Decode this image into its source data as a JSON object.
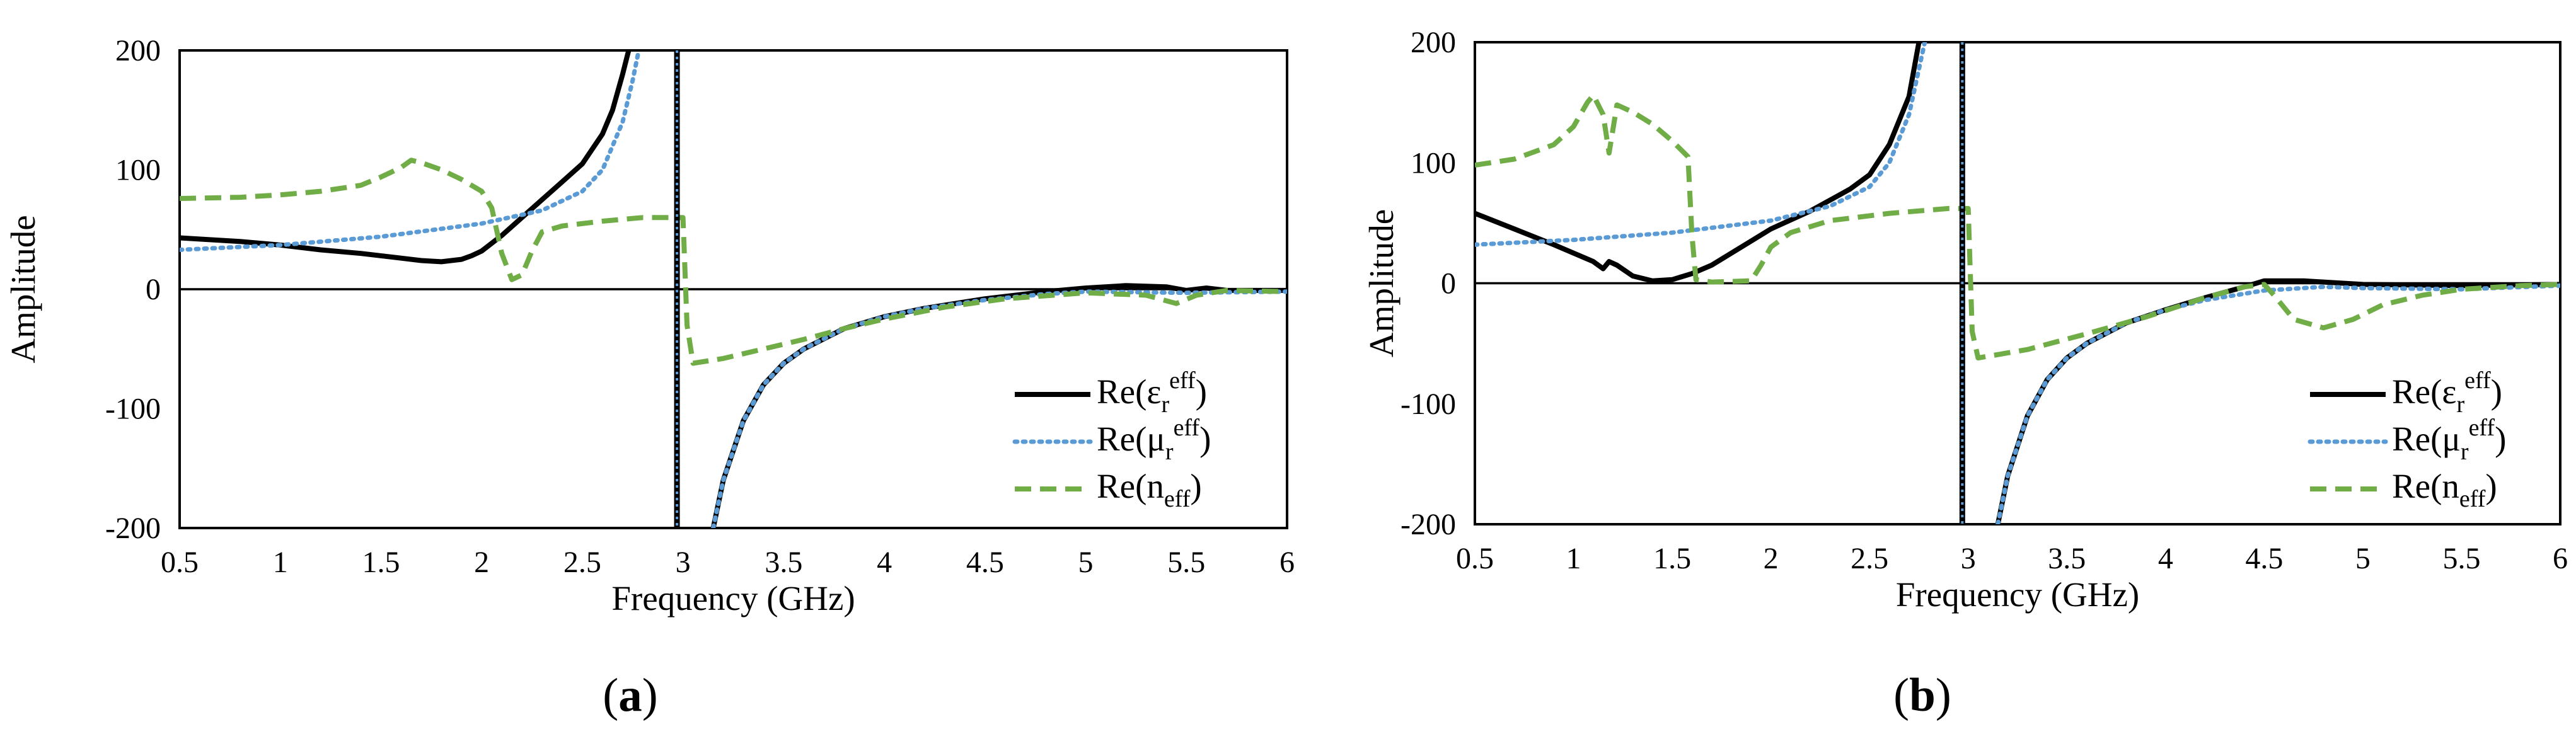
{
  "figure": {
    "panel_labels": [
      "(a)",
      "(b)"
    ]
  },
  "chart_data": [
    {
      "type": "line",
      "panel": "a",
      "panel_letter": "a",
      "xlabel": "Frequency (GHz)",
      "ylabel": "Amplitude",
      "xlim": [
        0.5,
        6
      ],
      "ylim": [
        -200,
        200
      ],
      "xticks": [
        0.5,
        1,
        1.5,
        2,
        2.5,
        3,
        3.5,
        4,
        4.5,
        5,
        5.5,
        6
      ],
      "xtick_labels": [
        "0.5",
        "1",
        "1.5",
        "2",
        "2.5",
        "3",
        "3.5",
        "4",
        "4.5",
        "5",
        "5.5",
        "6"
      ],
      "yticks": [
        -200,
        -100,
        0,
        100,
        200
      ],
      "ytick_labels": [
        "-200",
        "-100",
        "0",
        "100",
        "200"
      ],
      "legend_position": "lower-right",
      "series": [
        {
          "name": "Re(εreff)",
          "legend": {
            "base": "Re(ε",
            "sub": "r",
            "sup": "eff",
            "close": ")"
          },
          "color": "#000000",
          "style": "solid",
          "segments": [
            [
              [
                0.5,
                43
              ],
              [
                0.8,
                40
              ],
              [
                1.0,
                37
              ],
              [
                1.2,
                33
              ],
              [
                1.4,
                30
              ],
              [
                1.6,
                26
              ],
              [
                1.7,
                24
              ],
              [
                1.8,
                23
              ],
              [
                1.9,
                25
              ],
              [
                1.95,
                28
              ],
              [
                2.0,
                32
              ],
              [
                2.1,
                45
              ],
              [
                2.2,
                60
              ],
              [
                2.3,
                75
              ],
              [
                2.4,
                90
              ],
              [
                2.5,
                105
              ],
              [
                2.6,
                130
              ],
              [
                2.65,
                150
              ],
              [
                2.7,
                180
              ],
              [
                2.73,
                200
              ]
            ],
            [
              [
                3.15,
                -200
              ],
              [
                3.2,
                -160
              ],
              [
                3.3,
                -110
              ],
              [
                3.4,
                -80
              ],
              [
                3.5,
                -62
              ],
              [
                3.6,
                -50
              ],
              [
                3.8,
                -33
              ],
              [
                4.0,
                -23
              ],
              [
                4.2,
                -16
              ],
              [
                4.5,
                -8
              ],
              [
                4.8,
                -2
              ],
              [
                5.0,
                1
              ],
              [
                5.2,
                3
              ],
              [
                5.4,
                2
              ],
              [
                5.5,
                -1
              ],
              [
                5.6,
                1
              ],
              [
                5.7,
                -1
              ],
              [
                6.0,
                -1
              ]
            ]
          ]
        },
        {
          "name": "Re(μreff)",
          "legend": {
            "base": "Re(μ",
            "sub": "r",
            "sup": "eff",
            "close": ")"
          },
          "color": "#5b9bd5",
          "style": "dotted",
          "segments": [
            [
              [
                0.5,
                33
              ],
              [
                1.0,
                37
              ],
              [
                1.5,
                44
              ],
              [
                2.0,
                55
              ],
              [
                2.3,
                66
              ],
              [
                2.5,
                82
              ],
              [
                2.6,
                100
              ],
              [
                2.7,
                140
              ],
              [
                2.75,
                175
              ],
              [
                2.78,
                200
              ]
            ],
            [
              [
                3.15,
                -200
              ],
              [
                3.2,
                -160
              ],
              [
                3.3,
                -110
              ],
              [
                3.4,
                -80
              ],
              [
                3.5,
                -62
              ],
              [
                3.6,
                -50
              ],
              [
                3.8,
                -33
              ],
              [
                4.0,
                -23
              ],
              [
                4.2,
                -16
              ],
              [
                4.5,
                -9
              ],
              [
                4.8,
                -4
              ],
              [
                5.0,
                -2
              ],
              [
                5.5,
                -3
              ],
              [
                6.0,
                -2
              ]
            ]
          ]
        },
        {
          "name": "Re(neff)",
          "legend": {
            "base": "Re(n",
            "sub": "eff",
            "sup": "",
            "close": ")"
          },
          "color": "#70ad47",
          "style": "dashed",
          "segments": [
            [
              [
                0.5,
                76
              ],
              [
                0.8,
                77
              ],
              [
                1.0,
                79
              ],
              [
                1.2,
                82
              ],
              [
                1.4,
                87
              ],
              [
                1.5,
                94
              ],
              [
                1.6,
                102
              ],
              [
                1.65,
                108
              ],
              [
                1.7,
                106
              ],
              [
                1.8,
                100
              ],
              [
                1.9,
                92
              ],
              [
                2.0,
                82
              ],
              [
                2.05,
                68
              ],
              [
                2.1,
                30
              ],
              [
                2.15,
                8
              ],
              [
                2.2,
                12
              ],
              [
                2.25,
                32
              ],
              [
                2.3,
                48
              ],
              [
                2.4,
                53
              ],
              [
                2.6,
                57
              ],
              [
                2.8,
                60
              ],
              [
                2.95,
                60
              ],
              [
                3.0,
                60
              ],
              [
                3.02,
                -30
              ],
              [
                3.05,
                -62
              ],
              [
                3.2,
                -58
              ],
              [
                3.4,
                -50
              ],
              [
                3.6,
                -42
              ],
              [
                3.8,
                -33
              ],
              [
                4.0,
                -25
              ],
              [
                4.3,
                -15
              ],
              [
                4.6,
                -8
              ],
              [
                5.0,
                -3
              ],
              [
                5.3,
                -5
              ],
              [
                5.45,
                -12
              ],
              [
                5.55,
                -5
              ],
              [
                5.7,
                -1
              ],
              [
                6.0,
                -2
              ]
            ]
          ]
        }
      ]
    },
    {
      "type": "line",
      "panel": "b",
      "panel_letter": "b",
      "xlabel": "Frequency (GHz)",
      "ylabel": "Amplitude",
      "xlim": [
        0.5,
        6
      ],
      "ylim": [
        -200,
        200
      ],
      "xticks": [
        0.5,
        1,
        1.5,
        2,
        2.5,
        3,
        3.5,
        4,
        4.5,
        5,
        5.5,
        6
      ],
      "xtick_labels": [
        "0.5",
        "1",
        "1.5",
        "2",
        "2.5",
        "3",
        "3.5",
        "4",
        "4.5",
        "5",
        "5.5",
        "6"
      ],
      "yticks": [
        -200,
        -100,
        0,
        100,
        200
      ],
      "ytick_labels": [
        "-200",
        "-100",
        "0",
        "100",
        "200"
      ],
      "legend_position": "lower-right",
      "series": [
        {
          "name": "Re(εreff)",
          "legend": {
            "base": "Re(ε",
            "sub": "r",
            "sup": "eff",
            "close": ")"
          },
          "color": "#000000",
          "style": "solid",
          "segments": [
            [
              [
                0.5,
                58
              ],
              [
                0.7,
                45
              ],
              [
                0.9,
                32
              ],
              [
                1.1,
                18
              ],
              [
                1.15,
                12
              ],
              [
                1.18,
                18
              ],
              [
                1.22,
                15
              ],
              [
                1.3,
                6
              ],
              [
                1.4,
                2
              ],
              [
                1.5,
                3
              ],
              [
                1.6,
                8
              ],
              [
                1.7,
                15
              ],
              [
                1.8,
                25
              ],
              [
                2.0,
                45
              ],
              [
                2.2,
                60
              ],
              [
                2.4,
                78
              ],
              [
                2.5,
                90
              ],
              [
                2.6,
                115
              ],
              [
                2.7,
                155
              ],
              [
                2.75,
                200
              ]
            ],
            [
              [
                3.15,
                -200
              ],
              [
                3.2,
                -160
              ],
              [
                3.3,
                -110
              ],
              [
                3.4,
                -80
              ],
              [
                3.5,
                -62
              ],
              [
                3.6,
                -50
              ],
              [
                3.8,
                -33
              ],
              [
                4.0,
                -22
              ],
              [
                4.2,
                -12
              ],
              [
                4.4,
                -3
              ],
              [
                4.5,
                2
              ],
              [
                4.7,
                2
              ],
              [
                4.8,
                1
              ],
              [
                5.0,
                -1
              ],
              [
                5.5,
                -2
              ],
              [
                6.0,
                -1
              ]
            ]
          ]
        },
        {
          "name": "Re(μreff)",
          "legend": {
            "base": "Re(μ",
            "sub": "r",
            "sup": "eff",
            "close": ")"
          },
          "color": "#5b9bd5",
          "style": "dotted",
          "segments": [
            [
              [
                0.5,
                32
              ],
              [
                1.0,
                36
              ],
              [
                1.5,
                42
              ],
              [
                2.0,
                52
              ],
              [
                2.3,
                64
              ],
              [
                2.5,
                80
              ],
              [
                2.6,
                100
              ],
              [
                2.7,
                140
              ],
              [
                2.78,
                200
              ]
            ],
            [
              [
                3.15,
                -200
              ],
              [
                3.2,
                -160
              ],
              [
                3.3,
                -110
              ],
              [
                3.4,
                -80
              ],
              [
                3.5,
                -62
              ],
              [
                3.6,
                -50
              ],
              [
                3.8,
                -33
              ],
              [
                4.0,
                -22
              ],
              [
                4.2,
                -14
              ],
              [
                4.5,
                -6
              ],
              [
                4.8,
                -3
              ],
              [
                5.0,
                -4
              ],
              [
                5.5,
                -5
              ],
              [
                6.0,
                -2
              ]
            ]
          ]
        },
        {
          "name": "Re(neff)",
          "legend": {
            "base": "Re(n",
            "sub": "eff",
            "sup": "",
            "close": ")"
          },
          "color": "#70ad47",
          "style": "dashed",
          "segments": [
            [
              [
                0.5,
                98
              ],
              [
                0.7,
                103
              ],
              [
                0.9,
                115
              ],
              [
                1.0,
                130
              ],
              [
                1.07,
                150
              ],
              [
                1.1,
                156
              ],
              [
                1.15,
                140
              ],
              [
                1.18,
                108
              ],
              [
                1.22,
                148
              ],
              [
                1.3,
                142
              ],
              [
                1.4,
                132
              ],
              [
                1.5,
                118
              ],
              [
                1.58,
                105
              ],
              [
                1.6,
                40
              ],
              [
                1.62,
                3
              ],
              [
                1.7,
                1
              ],
              [
                1.9,
                2
              ],
              [
                1.95,
                15
              ],
              [
                2.0,
                30
              ],
              [
                2.1,
                42
              ],
              [
                2.3,
                52
              ],
              [
                2.6,
                58
              ],
              [
                2.9,
                62
              ],
              [
                3.0,
                62
              ],
              [
                3.02,
                -40
              ],
              [
                3.05,
                -62
              ],
              [
                3.3,
                -55
              ],
              [
                3.6,
                -42
              ],
              [
                3.9,
                -28
              ],
              [
                4.2,
                -12
              ],
              [
                4.4,
                -3
              ],
              [
                4.5,
                -1
              ],
              [
                4.55,
                -10
              ],
              [
                4.65,
                -30
              ],
              [
                4.8,
                -37
              ],
              [
                4.95,
                -30
              ],
              [
                5.1,
                -18
              ],
              [
                5.3,
                -10
              ],
              [
                5.5,
                -5
              ],
              [
                5.8,
                -2
              ],
              [
                6.0,
                -1
              ]
            ]
          ]
        }
      ]
    }
  ]
}
